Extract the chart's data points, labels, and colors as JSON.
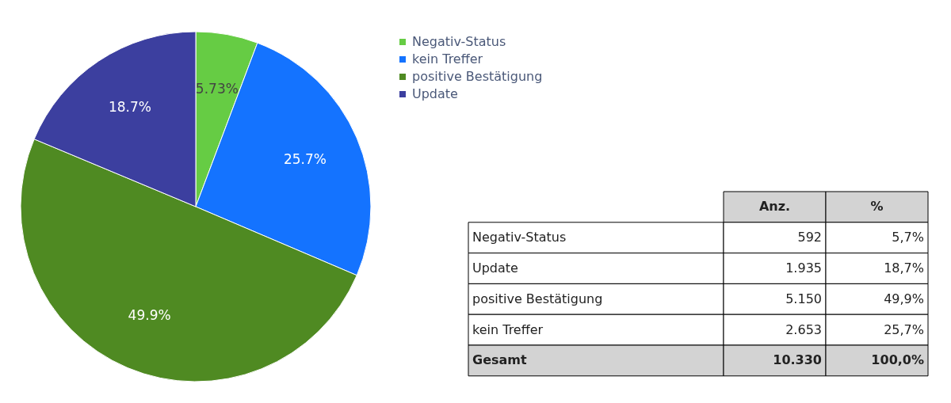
{
  "chart_data": [
    {
      "type": "pie",
      "categories": [
        "Negativ-Status",
        "kein Treffer",
        "positive Bestätigung",
        "Update"
      ],
      "values": [
        5.73,
        25.7,
        49.9,
        18.7
      ],
      "colors": [
        "#66cc44",
        "#1473ff",
        "#4f8a22",
        "#3c3f9f"
      ],
      "value_labels": [
        "5.73%",
        "25.7%",
        "49.9%",
        "18.7%"
      ],
      "legend": "top right"
    },
    {
      "type": "other",
      "annotations": [
        "Anz.",
        "%",
        "Negativ-Status",
        "592",
        "5,7%",
        "Update",
        "1.935",
        "18,7%",
        "positive Bestätigung",
        "5.150",
        "49,9%",
        "kein Treffer",
        "2.653",
        "25,7%",
        "Gesamt",
        "10.330",
        "100,0%"
      ]
    }
  ]
}
